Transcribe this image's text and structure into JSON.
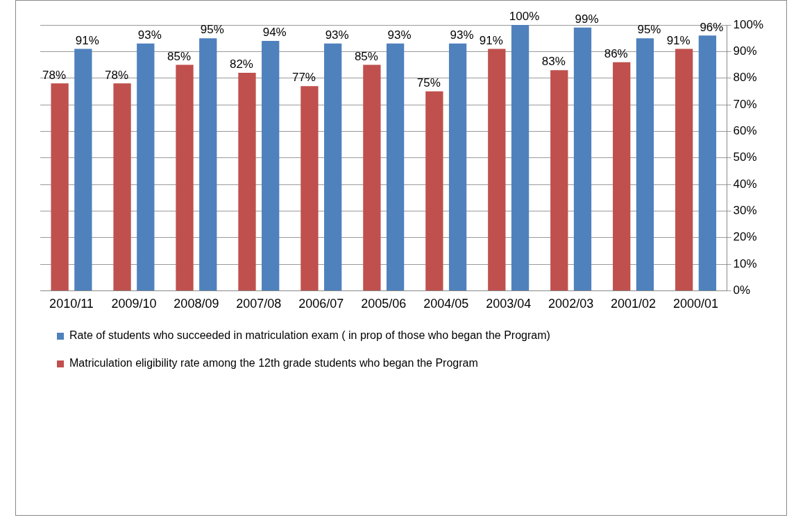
{
  "chart_data": {
    "type": "bar",
    "categories": [
      "2010/11",
      "2009/10",
      "2008/09",
      "2007/08",
      "2006/07",
      "2005/06",
      "2004/05",
      "2003/04",
      "2002/03",
      "2001/02",
      "2000/01"
    ],
    "series": [
      {
        "name": "Matriculation eligibility rate among the 12th grade students who began the Program",
        "color": "#c0504d",
        "values": [
          78,
          78,
          85,
          82,
          77,
          85,
          75,
          91,
          83,
          86,
          91
        ],
        "value_labels": [
          "78%",
          "78%",
          "85%",
          "82%",
          "77%",
          "85%",
          "75%",
          "91%",
          "83%",
          "86%",
          "91%"
        ]
      },
      {
        "name": "Rate of students who succeeded in matriculation exam ( in prop of those who began the Program)",
        "color": "#4f81bd",
        "values": [
          91,
          93,
          95,
          94,
          93,
          93,
          93,
          100,
          99,
          95,
          96
        ],
        "value_labels": [
          "91%",
          "93%",
          "95%",
          "94%",
          "93%",
          "93%",
          "93%",
          "100%",
          "99%",
          "95%",
          "96%"
        ]
      }
    ],
    "ylim": [
      0,
      100
    ],
    "yticks": [
      {
        "value": 0,
        "label": "0%"
      },
      {
        "value": 10,
        "label": "10%"
      },
      {
        "value": 20,
        "label": "20%"
      },
      {
        "value": 30,
        "label": "30%"
      },
      {
        "value": 40,
        "label": "40%"
      },
      {
        "value": 50,
        "label": "50%"
      },
      {
        "value": 60,
        "label": "60%"
      },
      {
        "value": 70,
        "label": "70%"
      },
      {
        "value": 80,
        "label": "80%"
      },
      {
        "value": 90,
        "label": "90%"
      },
      {
        "value": 100,
        "label": "100%"
      }
    ],
    "grid": "y",
    "legend": "bottom"
  }
}
